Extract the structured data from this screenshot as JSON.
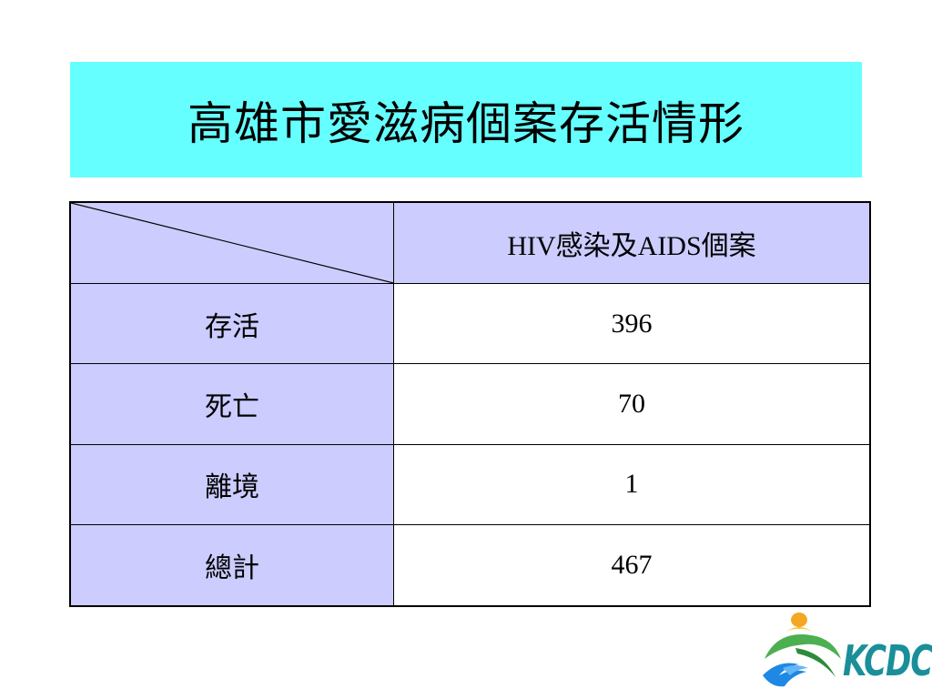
{
  "title": "高雄市愛滋病個案存活情形",
  "table": {
    "column_header": "HIV感染及AIDS個案",
    "rows": [
      {
        "label": "存活",
        "value": "396"
      },
      {
        "label": "死亡",
        "value": "70"
      },
      {
        "label": "離境",
        "value": "1"
      },
      {
        "label": "總計",
        "value": "467"
      }
    ]
  },
  "logo": {
    "text": "KCDC",
    "icon": "kcdc-logo-icon"
  },
  "colors": {
    "title_background": "#66ffff",
    "label_background": "#ccccff",
    "value_background": "#ffffff",
    "border": "#000000"
  }
}
